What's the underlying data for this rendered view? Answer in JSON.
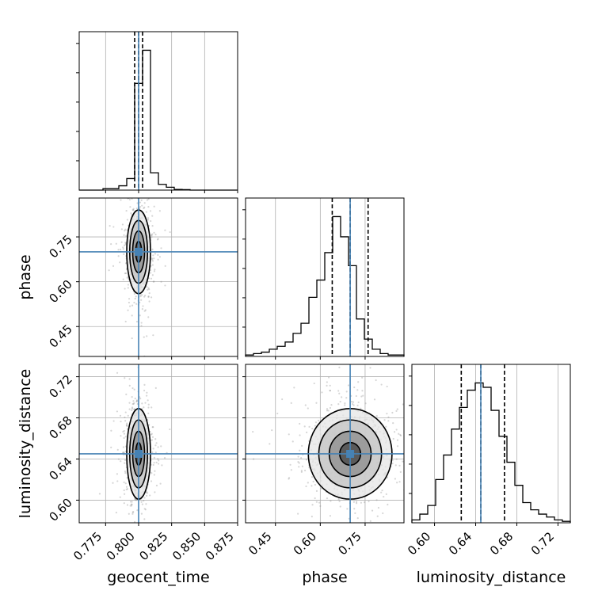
{
  "chart_data": {
    "type": "corner",
    "parameters": [
      "geocent_time",
      "phase",
      "luminosity_distance"
    ],
    "axis_labels": {
      "geocent_time": "geocent_time",
      "phase": "phase",
      "luminosity_distance": "luminosity_distance"
    },
    "ranges": {
      "geocent_time": [
        0.755,
        0.875
      ],
      "phase": [
        0.35,
        0.88
      ],
      "luminosity_distance": [
        0.578,
        0.732
      ]
    },
    "ticks": {
      "geocent_time": [
        0.775,
        0.8,
        0.825,
        0.85,
        0.875
      ],
      "phase": [
        0.45,
        0.6,
        0.75
      ],
      "luminosity_distance": [
        0.6,
        0.64,
        0.68,
        0.72
      ]
    },
    "tick_labels": {
      "geocent_time": [
        "0.775",
        "0.800",
        "0.825",
        "0.850",
        "0.875"
      ],
      "phase": [
        "0.45",
        "0.60",
        "0.75"
      ],
      "luminosity_distance": [
        "0.60",
        "0.64",
        "0.68",
        "0.72"
      ]
    },
    "truths": {
      "geocent_time": 0.8,
      "phase": 0.7,
      "luminosity_distance": 0.645
    },
    "quantiles": {
      "geocent_time": [
        0.797,
        0.8,
        0.803
      ],
      "phase": [
        0.64,
        0.7,
        0.76
      ],
      "luminosity_distance": [
        0.626,
        0.645,
        0.668
      ]
    },
    "histograms": {
      "geocent_time": {
        "edges": [
          0.755,
          0.761,
          0.767,
          0.773,
          0.779,
          0.785,
          0.791,
          0.797,
          0.803,
          0.809,
          0.815,
          0.821,
          0.827,
          0.833,
          0.839,
          0.845,
          0.851,
          0.857,
          0.863,
          0.869,
          0.875
        ],
        "values": [
          0,
          0,
          0,
          0.01,
          0.01,
          0.03,
          0.08,
          0.74,
          0.97,
          0.12,
          0.04,
          0.02,
          0.005,
          0.003,
          0,
          0,
          0,
          0,
          0,
          0
        ]
      },
      "phase": {
        "edges": [
          0.35,
          0.3765,
          0.403,
          0.4295,
          0.456,
          0.4825,
          0.509,
          0.5355,
          0.562,
          0.5885,
          0.615,
          0.6415,
          0.668,
          0.6945,
          0.721,
          0.7475,
          0.774,
          0.8005,
          0.827,
          0.8535,
          0.88
        ],
        "values": [
          0.01,
          0.02,
          0.03,
          0.05,
          0.07,
          0.1,
          0.16,
          0.23,
          0.41,
          0.53,
          0.72,
          0.97,
          0.83,
          0.63,
          0.26,
          0.12,
          0.05,
          0.02,
          0.01,
          0.01
        ]
      },
      "luminosity_distance": {
        "edges": [
          0.578,
          0.5857,
          0.5934,
          0.6011,
          0.6088,
          0.6165,
          0.6242,
          0.6319,
          0.6396,
          0.6473,
          0.655,
          0.6627,
          0.6704,
          0.6781,
          0.6858,
          0.6935,
          0.7012,
          0.7089,
          0.7166,
          0.7243,
          0.732
        ],
        "values": [
          0.02,
          0.06,
          0.12,
          0.3,
          0.47,
          0.65,
          0.8,
          0.92,
          0.97,
          0.94,
          0.78,
          0.6,
          0.42,
          0.26,
          0.14,
          0.09,
          0.06,
          0.04,
          0.02,
          0.01
        ]
      }
    },
    "contour_levels": [
      "0.5",
      "1.0",
      "1.5",
      "2.0"
    ],
    "colors": {
      "hist": "#000000",
      "truth": "#4682b4",
      "contour": "#000000",
      "points": "#8a8a8a",
      "grid": "#b0b0b0"
    },
    "grid": true
  }
}
